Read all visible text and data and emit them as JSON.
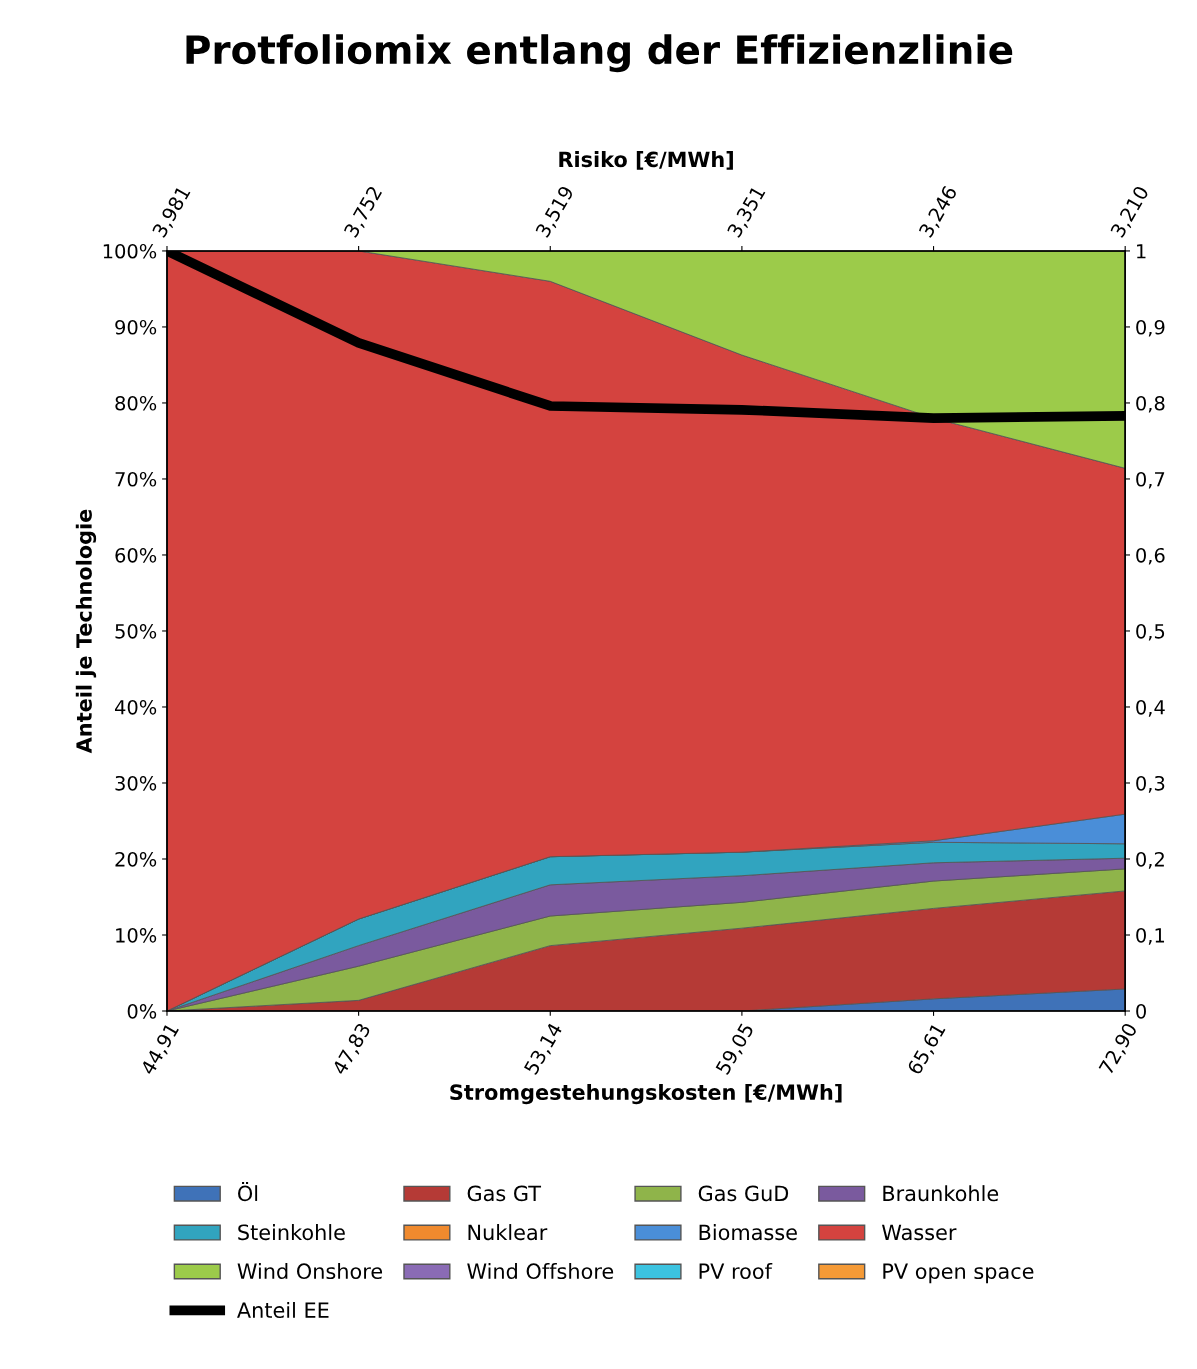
{
  "chart_data": {
    "type": "area",
    "stacked": true,
    "title": "Protfoliomix entlang der Effizienzlinie",
    "xlabel": "Stromgestehungskosten [€/MWh]",
    "x2label": "Risiko [€/MWh]",
    "ylabel": "Anteil je Technologie",
    "categories": [
      "44,91",
      "47,83",
      "53,14",
      "59,05",
      "65,61",
      "72,90"
    ],
    "annotations": [
      "3,981",
      "3,752",
      "3,519",
      "3,351",
      "3,246",
      "3,210"
    ],
    "ylim": [
      0,
      1
    ],
    "yticks": [
      {
        "value": 0,
        "label": "0%"
      },
      {
        "value": 0.1,
        "label": "10%"
      },
      {
        "value": 0.2,
        "label": "20%"
      },
      {
        "value": 0.3,
        "label": "30%"
      },
      {
        "value": 0.4,
        "label": "40%"
      },
      {
        "value": 0.5,
        "label": "50%"
      },
      {
        "value": 0.6,
        "label": "60%"
      },
      {
        "value": 0.7,
        "label": "70%"
      },
      {
        "value": 0.8,
        "label": "80%"
      },
      {
        "value": 0.9,
        "label": "90%"
      },
      {
        "value": 1,
        "label": "100%"
      }
    ],
    "y2lim": [
      0,
      1
    ],
    "y2ticks": [
      0,
      {
        "value": 0.1,
        "label": "0,1"
      },
      {
        "value": 0.2,
        "label": "0,2"
      },
      {
        "value": 0.3,
        "label": "0,3"
      },
      {
        "value": 0.4,
        "label": "0,4"
      },
      {
        "value": 0.5,
        "label": "0,5"
      },
      {
        "value": 0.6,
        "label": "0,6"
      },
      {
        "value": 0.7,
        "label": "0,7"
      },
      {
        "value": 0.8,
        "label": "0,8"
      },
      {
        "value": 0.9,
        "label": "0,9"
      },
      1
    ],
    "grid": false,
    "legend": "bottom",
    "series": [
      {
        "name": "Öl",
        "color": "#3f72b8",
        "values": [
          0,
          0,
          0,
          0,
          0.016,
          0.029
        ]
      },
      {
        "name": "Gas GT",
        "color": "#b53a36",
        "values": [
          0,
          0.014,
          0.086,
          0.109,
          0.119,
          0.129
        ]
      },
      {
        "name": "Gas GuD",
        "color": "#8fb44a",
        "values": [
          0,
          0.045,
          0.039,
          0.034,
          0.036,
          0.029
        ]
      },
      {
        "name": "Braunkohle",
        "color": "#7a5a9e",
        "values": [
          0,
          0.027,
          0.041,
          0.035,
          0.024,
          0.014
        ]
      },
      {
        "name": "Steinkohle",
        "color": "#31a4bf",
        "values": [
          0,
          0.035,
          0.037,
          0.031,
          0.027,
          0.019
        ]
      },
      {
        "name": "Nuklear",
        "color": "#f08a2e",
        "values": [
          null,
          null,
          null,
          null,
          null,
          null
        ]
      },
      {
        "name": "Biomasse",
        "color": "#4a8ed8",
        "values": [
          0,
          0,
          0,
          0,
          0.002,
          0.039
        ]
      },
      {
        "name": "Wasser",
        "color": "#d4433f",
        "values": [
          1,
          0.879,
          0.757,
          0.654,
          0.556,
          0.455
        ]
      },
      {
        "name": "Wind Onshore",
        "color": "#9ccb4a",
        "values": [
          0,
          0,
          0.04,
          0.137,
          0.22,
          0.286
        ]
      },
      {
        "name": "Wind Offshore",
        "color": "#8a6bb5",
        "values": [
          null,
          null,
          null,
          null,
          null,
          null
        ]
      },
      {
        "name": "PV roof",
        "color": "#3cc3e0",
        "values": [
          null,
          null,
          null,
          null,
          null,
          null
        ]
      },
      {
        "name": "PV open space",
        "color": "#f59a36",
        "values": [
          null,
          null,
          null,
          null,
          null,
          null
        ]
      },
      {
        "name": "Anteil EE",
        "type": "line",
        "axis": "y2",
        "color": "#000000",
        "values": [
          1,
          0.879,
          0.796,
          0.791,
          0.78,
          0.783
        ]
      }
    ]
  }
}
